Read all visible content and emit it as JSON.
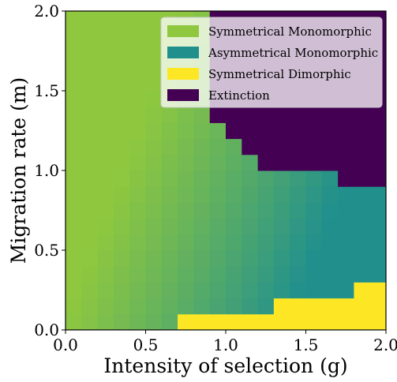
{
  "chart_data": {
    "type": "heatmap",
    "xlabel": "Intensity of selection (g)",
    "ylabel": "Migration rate (m)",
    "xlim": [
      0.0,
      2.0
    ],
    "ylim": [
      0.0,
      2.0
    ],
    "x_ticks": [
      "0.0",
      "0.5",
      "1.0",
      "1.5",
      "2.0"
    ],
    "y_ticks": [
      "0.0",
      "0.5",
      "1.0",
      "1.5",
      "2.0"
    ],
    "grid": false,
    "legend_placement": "upper-right",
    "legend": [
      {
        "label": "Symmetrical Monomorphic",
        "color": "#8fc83f"
      },
      {
        "label": "Asymmetrical Monomorphic",
        "color": "#21908d"
      },
      {
        "label": "Symmetrical Dimorphic",
        "color": "#fde725"
      },
      {
        "label": "Extinction",
        "color": "#440154"
      }
    ],
    "grid_resolution": 0.1,
    "regions": {
      "extinction_boundary_by_column": [
        2.0,
        2.0,
        2.0,
        2.0,
        2.0,
        2.0,
        2.0,
        2.0,
        2.0,
        1.3,
        1.2,
        1.1,
        1.0,
        1.0,
        1.0,
        1.0,
        1.0,
        0.9,
        0.9,
        0.9
      ],
      "dimorphic_boundary_by_column": [
        0.0,
        0.0,
        0.0,
        0.0,
        0.0,
        0.0,
        0.0,
        0.1,
        0.1,
        0.1,
        0.1,
        0.1,
        0.1,
        0.2,
        0.2,
        0.2,
        0.2,
        0.2,
        0.3,
        0.3
      ],
      "monomorphic_gradient_note": "transition from symmetrical (left) to asymmetrical (right/lower) monomorphic"
    }
  }
}
